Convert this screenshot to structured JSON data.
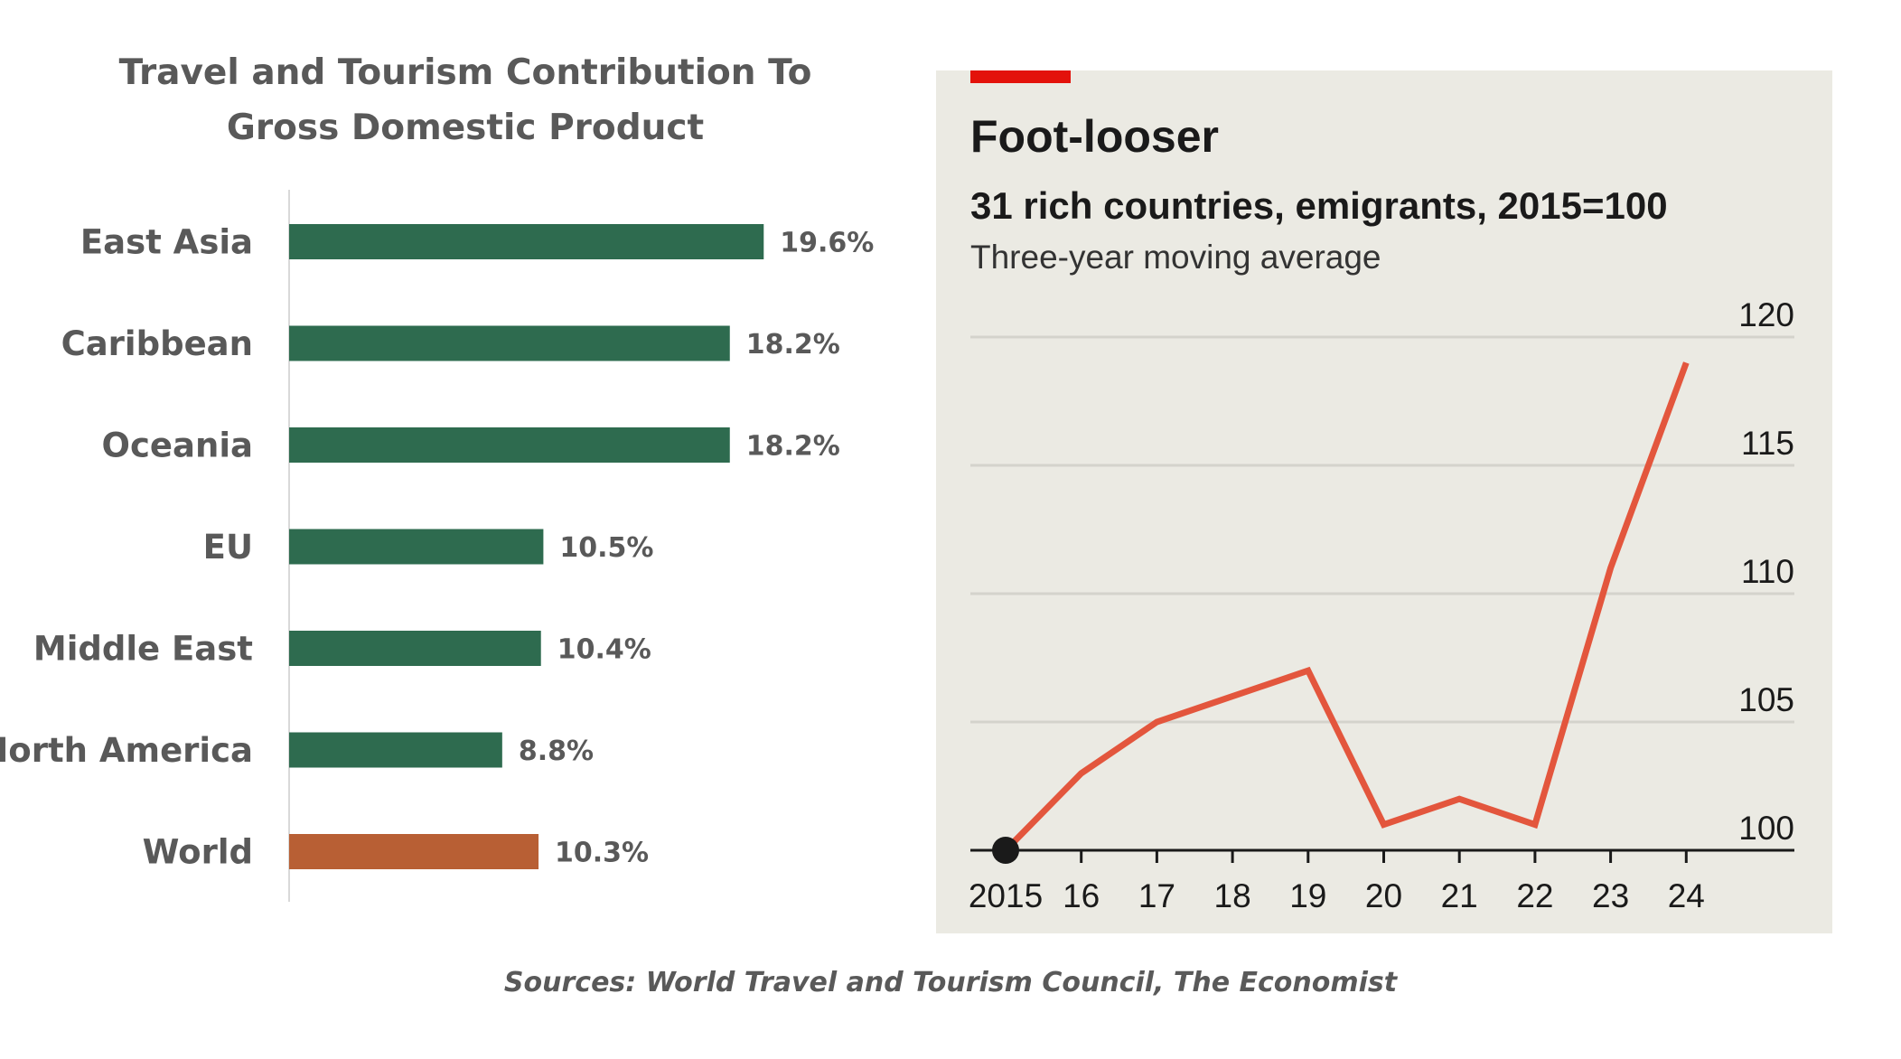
{
  "chart_data": [
    {
      "type": "bar",
      "orientation": "horizontal",
      "title": "Travel and Tourism Contribution To Gross Domestic Product",
      "title_lines": [
        "Travel and Tourism Contribution To",
        "Gross Domestic Product"
      ],
      "categories": [
        "East Asia",
        "Caribbean",
        "Oceania",
        "EU",
        "Middle East",
        "North America",
        "World"
      ],
      "values": [
        19.6,
        18.2,
        18.2,
        10.5,
        10.4,
        8.8,
        10.3
      ],
      "value_labels": [
        "19.6%",
        "18.2%",
        "18.2%",
        "10.5%",
        "10.4%",
        "8.8%",
        "10.3%"
      ],
      "unit": "%",
      "xlim": [
        0,
        25
      ],
      "grid": false,
      "legend": "none",
      "colors": {
        "bar": "#2e6b4f",
        "highlight": "#b85f34",
        "highlight_category": "World",
        "text": "#595959"
      }
    },
    {
      "type": "line",
      "title": "Foot-looser",
      "subtitle": "31 rich countries, emigrants, 2015=100",
      "note": "Three-year moving average",
      "x": [
        2015,
        2016,
        2017,
        2018,
        2019,
        2020,
        2021,
        2022,
        2023,
        2024
      ],
      "x_tick_labels": [
        "2015",
        "16",
        "17",
        "18",
        "19",
        "20",
        "21",
        "22",
        "23",
        "24"
      ],
      "series": [
        {
          "values": [
            100,
            103,
            105,
            106,
            107,
            101,
            102,
            101,
            111,
            119
          ]
        }
      ],
      "ylim": [
        100,
        120
      ],
      "y_ticks": [
        100,
        105,
        110,
        115,
        120
      ],
      "y_axis_side": "right",
      "grid": true,
      "legend": "none",
      "base_marker": "2015",
      "colors": {
        "background": "#ebeae3",
        "line": "#e3563d",
        "accent": "#e3120b",
        "grid": "#d4d3cc",
        "axis": "#1a1a1a",
        "text": "#1a1a1a"
      }
    }
  ],
  "sources": "Sources: World Travel and Tourism Council, The Economist"
}
